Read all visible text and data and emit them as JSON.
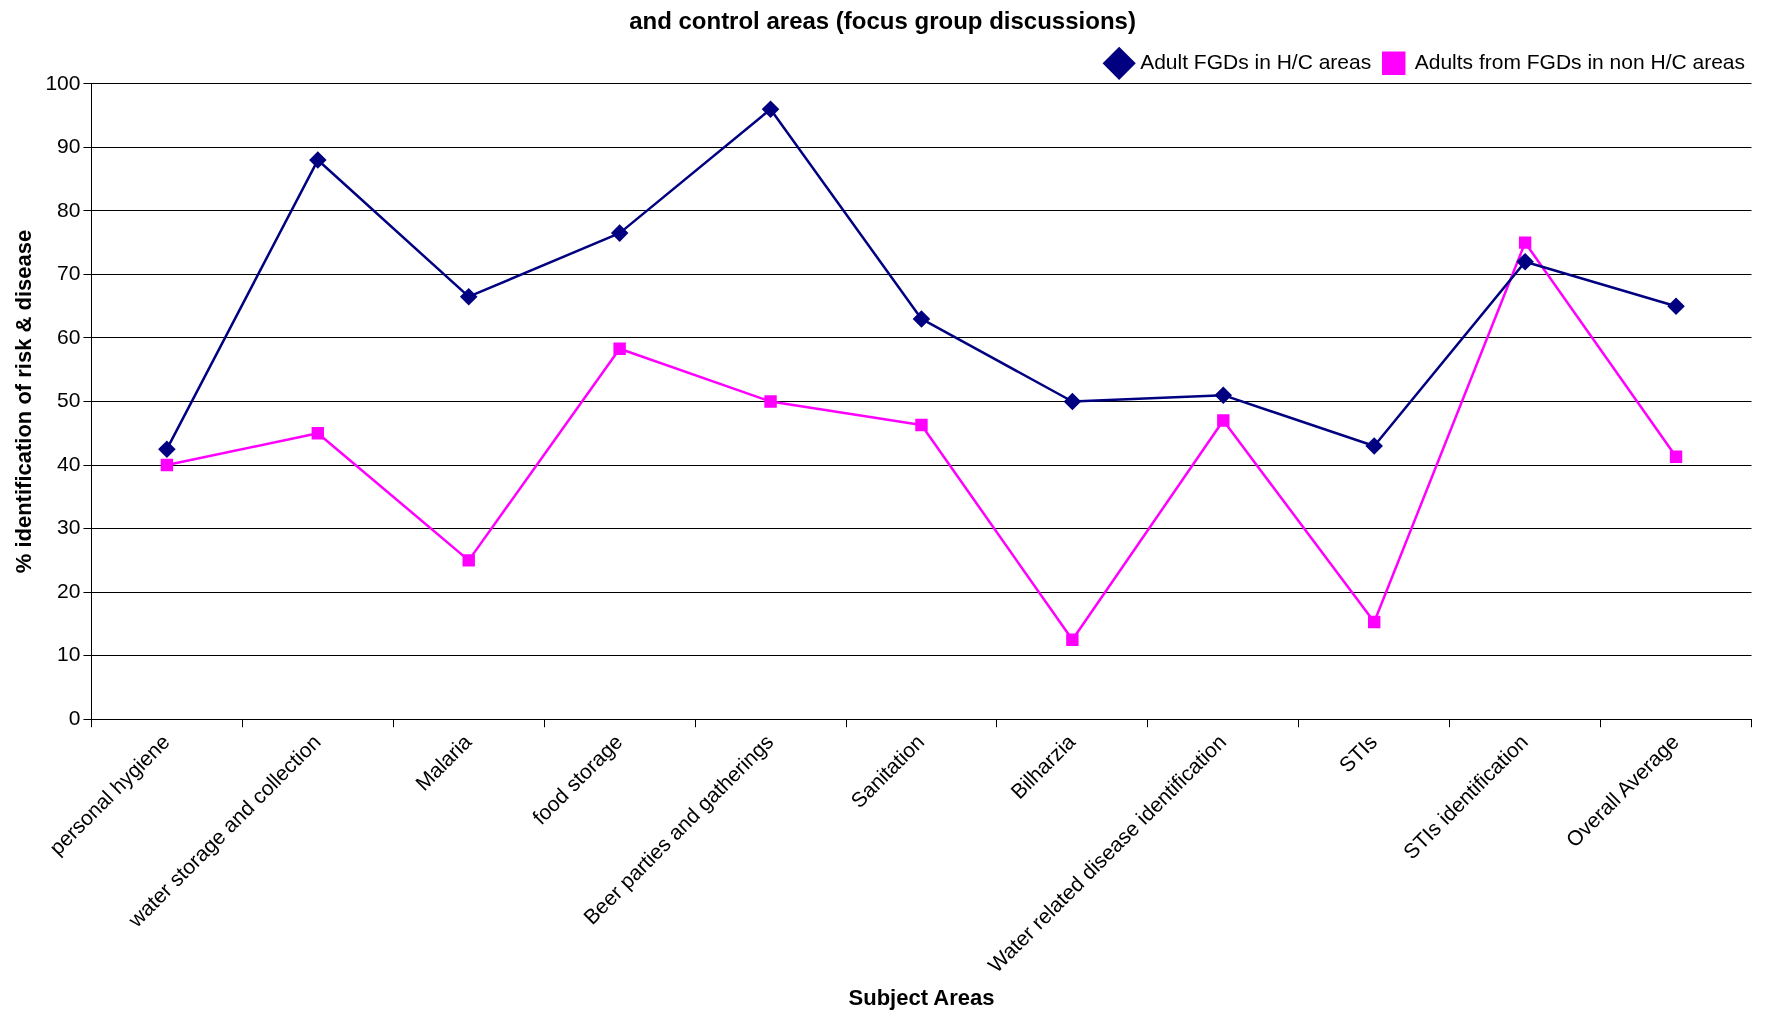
{
  "chart_data": {
    "type": "line",
    "title": "and control areas (focus group discussions)",
    "xlabel": "Subject Areas",
    "ylabel": "% identification of risk & disease",
    "categories": [
      "personal hygiene",
      "water storage and collection",
      "Malaria",
      "food storage",
      "Beer parties and gatherings",
      "Sanitation",
      "Bilharzia",
      "Water related disease identification",
      "STIs",
      "STIs identification",
      "Overall Average"
    ],
    "series": [
      {
        "name": "Adult FGDs in H/C areas",
        "color": "#000080",
        "marker": "diamond",
        "values": [
          42.5,
          88,
          66.5,
          76.5,
          96,
          63,
          50,
          51,
          43,
          72,
          65
        ]
      },
      {
        "name": "Adults from FGDs in non H/C areas",
        "color": "#ff00ff",
        "marker": "square",
        "values": [
          40,
          45,
          25,
          58.3,
          50,
          46.3,
          12.5,
          47,
          15.3,
          75,
          41.3
        ]
      }
    ],
    "ylim": [
      0,
      100
    ],
    "yticks": [
      0,
      10,
      20,
      30,
      40,
      50,
      60,
      70,
      80,
      90,
      100
    ],
    "grid": "y",
    "legend": "top right"
  }
}
